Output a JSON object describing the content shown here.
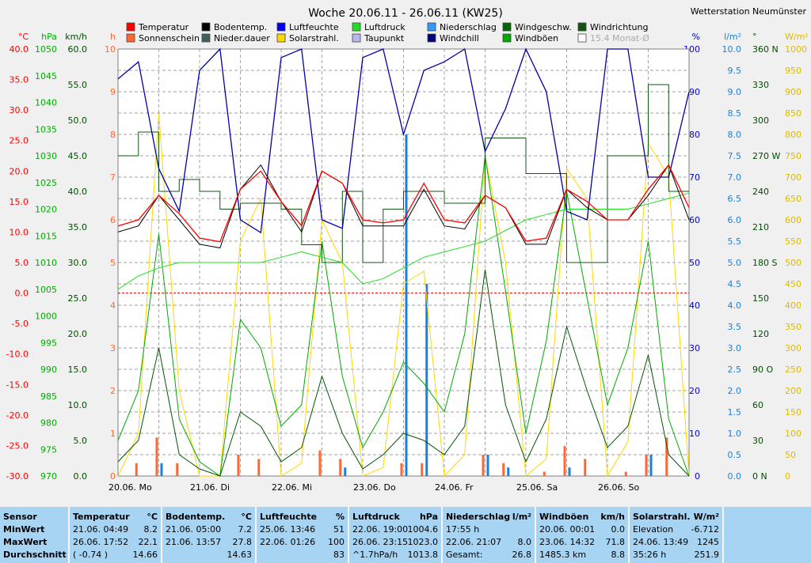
{
  "title": "Woche 20.06.11 - 26.06.11 (KW25)",
  "station": "Wetterstation Neumünster",
  "colors": {
    "temperature": "#ff0000",
    "soil": "#000000",
    "humidity": "#00008b",
    "pressure": "#00cc00",
    "rainfall": "#1e7fd6",
    "wind_speed": "#004d00",
    "wind_dir": "#106010",
    "gusts": "#009900",
    "sunshine": "#ff6633",
    "solar": "#ffd700",
    "dew": "#b0b0ff",
    "windchill": "#000080",
    "grid": "#606060"
  },
  "legend": [
    {
      "label": "Temperatur",
      "color": "#ff0000"
    },
    {
      "label": "Sonnenschein",
      "color": "#ff6633"
    },
    {
      "label": "Bodentemp.",
      "color": "#000000"
    },
    {
      "label": "Nieder.dauer",
      "color": "#406060"
    },
    {
      "label": "Luftfeuchte",
      "color": "#0000ff"
    },
    {
      "label": "Solarstrahl.",
      "color": "#ffd700"
    },
    {
      "label": "Luftdruck",
      "color": "#22dd22"
    },
    {
      "label": "Taupunkt",
      "color": "#b8b8ee"
    },
    {
      "label": "Niederschlag",
      "color": "#3399ff"
    },
    {
      "label": "Windchill",
      "color": "#000080"
    },
    {
      "label": "Windgeschw.",
      "color": "#006600"
    },
    {
      "label": "Windböen",
      "color": "#00aa00"
    },
    {
      "label": "Windrichtung",
      "color": "#115511"
    },
    {
      "label": "15.4 Monat-Ø",
      "color": "#ffffff"
    }
  ],
  "axes": {
    "temp": {
      "unit": "°C",
      "color": "#ff0000",
      "ticks": [
        "40.0",
        "35.0",
        "30.0",
        "25.0",
        "20.0",
        "15.0",
        "10.0",
        "5.0",
        "0.0",
        "-5.0",
        "-10.0",
        "-15.0",
        "-20.0",
        "-25.0",
        "-30.0"
      ]
    },
    "pressure": {
      "unit": "hPa",
      "color": "#00aa00",
      "ticks": [
        "1050",
        "1045",
        "1040",
        "1035",
        "1030",
        "1025",
        "1020",
        "1015",
        "1010",
        "1005",
        "1000",
        "995",
        "990",
        "985",
        "980",
        "975",
        "970"
      ]
    },
    "wind": {
      "unit": "km/h",
      "color": "#004d00",
      "ticks": [
        "60.0",
        "55.0",
        "50.0",
        "45.0",
        "40.0",
        "35.0",
        "30.0",
        "25.0",
        "20.0",
        "15.0",
        "10.0",
        "5.0",
        "0.0"
      ]
    },
    "hours": {
      "unit": "h",
      "color": "#ff6633",
      "ticks": [
        "10",
        "9",
        "8",
        "7",
        "6",
        "5",
        "4",
        "3",
        "2",
        "1",
        "0"
      ]
    },
    "humidity": {
      "unit": "%",
      "color": "#0000cc",
      "ticks": [
        "100",
        "90",
        "80",
        "70",
        "60",
        "50",
        "40",
        "30",
        "20",
        "10",
        "0"
      ]
    },
    "rain": {
      "unit": "l/m²",
      "color": "#1e7fd6",
      "ticks": [
        "10.0",
        "9.5",
        "9.0",
        "8.5",
        "8.0",
        "7.5",
        "7.0",
        "6.5",
        "6.0",
        "5.5",
        "5.0",
        "4.5",
        "4.0",
        "3.5",
        "3.0",
        "2.5",
        "2.0",
        "1.5",
        "1.0",
        "0.5",
        "0.0"
      ]
    },
    "direction": {
      "unit": "°",
      "color": "#004d00",
      "ticks": [
        "360 N",
        "330",
        "300",
        "270 W",
        "240",
        "210",
        "180 S",
        "150",
        "120",
        "90 O",
        "60",
        "30",
        "0    N"
      ]
    },
    "solar": {
      "unit": "W/m²",
      "color": "#ddbb00",
      "ticks": [
        "1000",
        "950",
        "900",
        "850",
        "800",
        "750",
        "700",
        "650",
        "600",
        "550",
        "500",
        "450",
        "400",
        "350",
        "300",
        "250",
        "200",
        "150",
        "100",
        "50",
        "0"
      ]
    }
  },
  "days": [
    "20.06.  Mo",
    "21.06.  Di",
    "22.06.  Mi",
    "23.06.  Do",
    "24.06.  Fr",
    "25.06.  Sa",
    "26.06.  So"
  ],
  "chart_data": {
    "type": "line",
    "title": "Woche 20.06.11 - 26.06.11 (KW25)",
    "x": [
      "20.06. 00:00",
      "20.06. 06:00",
      "20.06. 12:00",
      "20.06. 18:00",
      "21.06. 00:00",
      "21.06. 06:00",
      "21.06. 12:00",
      "21.06. 18:00",
      "22.06. 00:00",
      "22.06. 06:00",
      "22.06. 12:00",
      "22.06. 18:00",
      "23.06. 00:00",
      "23.06. 06:00",
      "23.06. 12:00",
      "23.06. 18:00",
      "24.06. 00:00",
      "24.06. 06:00",
      "24.06. 12:00",
      "24.06. 18:00",
      "25.06. 00:00",
      "25.06. 06:00",
      "25.06. 12:00",
      "25.06. 18:00",
      "26.06. 00:00",
      "26.06. 06:00",
      "26.06. 12:00",
      "26.06. 18:00",
      "26.06. 24:00"
    ],
    "series": [
      {
        "name": "Temperatur",
        "unit": "°C",
        "values": [
          11,
          12,
          16,
          13,
          9,
          8.4,
          17,
          20,
          15,
          11,
          20,
          18,
          12,
          11.5,
          12,
          18,
          12,
          11.5,
          16,
          14,
          8.5,
          9,
          17,
          15,
          12,
          12,
          17,
          21,
          14
        ]
      },
      {
        "name": "Bodentemp.",
        "unit": "°C",
        "values": [
          10,
          11,
          16,
          12,
          8,
          7.4,
          17,
          21,
          15,
          10,
          20,
          18,
          11,
          11,
          11,
          17,
          11,
          10.5,
          16,
          14,
          8,
          8,
          17,
          14,
          12,
          12,
          16,
          21,
          12
        ]
      },
      {
        "name": "Luftfeuchte",
        "unit": "%",
        "values": [
          93,
          97,
          72,
          62,
          95,
          100,
          60,
          57,
          98,
          100,
          60,
          58,
          98,
          100,
          80,
          95,
          97,
          100,
          76,
          86,
          100,
          90,
          62,
          60,
          100,
          100,
          70,
          70,
          90
        ]
      },
      {
        "name": "Luftdruck",
        "unit": "hPa",
        "values": [
          1005,
          1007.5,
          1009,
          1010,
          1010,
          1010,
          1010,
          1010,
          1011,
          1012,
          1011,
          1010,
          1006,
          1007,
          1009,
          1011,
          1012,
          1013,
          1014,
          1016,
          1018,
          1019,
          1020,
          1020,
          1020,
          1020,
          1021,
          1022,
          1023
        ]
      },
      {
        "name": "Windgeschw.",
        "unit": "km/h",
        "values": [
          2,
          5,
          18,
          3,
          1,
          0,
          9,
          7,
          2,
          4,
          14,
          6,
          1,
          3,
          6,
          5,
          3,
          7,
          29,
          10,
          2,
          8,
          21,
          12,
          4,
          7,
          17,
          3,
          0
        ]
      },
      {
        "name": "Windböen",
        "unit": "km/h",
        "values": [
          5,
          12,
          34,
          8,
          2,
          0,
          22,
          18,
          7,
          10,
          33,
          14,
          4,
          9,
          16,
          13,
          9,
          20,
          45,
          26,
          6,
          19,
          40,
          25,
          10,
          18,
          33,
          8,
          0
        ]
      },
      {
        "name": "Windrichtung",
        "unit": "°",
        "values": [
          270,
          290,
          240,
          250,
          240,
          225,
          230,
          230,
          225,
          195,
          180,
          240,
          180,
          225,
          240,
          240,
          230,
          230,
          285,
          285,
          255,
          255,
          180,
          180,
          270,
          270,
          330,
          240,
          240
        ]
      },
      {
        "name": "Solarstrahl.",
        "unit": "W/m²",
        "values": [
          0,
          100,
          850,
          200,
          0,
          0,
          550,
          650,
          0,
          30,
          600,
          500,
          0,
          20,
          450,
          480,
          0,
          50,
          750,
          500,
          0,
          40,
          720,
          650,
          0,
          80,
          780,
          700,
          0
        ]
      },
      {
        "name": "Niederschlag",
        "unit": "l/m²",
        "values": [
          0,
          0,
          0.3,
          0,
          0,
          0,
          0,
          0,
          0,
          0,
          0,
          0.2,
          0,
          0,
          8.0,
          4.5,
          0,
          0,
          0.5,
          0.2,
          0,
          0,
          0.2,
          0,
          0,
          0,
          0.5,
          0,
          0
        ]
      },
      {
        "name": "Sonnenschein",
        "unit": "h",
        "values": [
          0,
          0.3,
          0.9,
          0.3,
          0,
          0,
          0.5,
          0.4,
          0,
          0,
          0.6,
          0.4,
          0,
          0,
          0.3,
          0.3,
          0,
          0,
          0.5,
          0.3,
          0,
          0.1,
          0.7,
          0.4,
          0,
          0.1,
          0.5,
          0.9,
          0
        ]
      }
    ],
    "ylim_temp": [
      -30,
      40
    ],
    "ylim_pressure": [
      970,
      1050
    ],
    "ylim_wind": [
      0,
      60
    ],
    "ylim_humidity": [
      0,
      100
    ],
    "ylim_rain": [
      0,
      10
    ],
    "ylim_solar": [
      0,
      1000
    ],
    "ylim_dir": [
      0,
      360
    ],
    "ylim_hours": [
      0,
      10
    ],
    "grid": true
  },
  "stats": {
    "headers": {
      "sensor": "Sensor",
      "minwert": "MinWert",
      "maxwert": "MaxWert",
      "durchschnitt": "Durchschnitt"
    },
    "columns": [
      {
        "title": "Temperatur",
        "unit": "°C",
        "min_time": "21.06.  04:49",
        "min": "8.2",
        "max_time": "26.06.  17:52",
        "max": "22.1",
        "avg_time": "( -0.74 )",
        "avg": "14.66"
      },
      {
        "title": "Bodentemp.",
        "unit": "°C",
        "min_time": "21.06.  05:00",
        "min": "7.2",
        "max_time": "21.06.  13:57",
        "max": "27.8",
        "avg_time": "",
        "avg": "14.63"
      },
      {
        "title": "Luftfeuchte",
        "unit": "%",
        "min_time": "25.06.  13:46",
        "min": "51",
        "max_time": "22.06.  01:26",
        "max": "100",
        "avg_time": "",
        "avg": "83"
      },
      {
        "title": "Luftdruck",
        "unit": "hPa",
        "min_time": "22.06.  19:00",
        "min": "1004.6",
        "max_time": "26.06.  23:15",
        "max": "1023.0",
        "avg_time": "^1.7hPa/h",
        "avg": "1013.8"
      },
      {
        "title": "Niederschlag",
        "unit": "l/m²",
        "min_time": "17:55 h",
        "min": "",
        "max_time": "22.06.  21:07",
        "max": "8.0",
        "avg_time": "Gesamt:",
        "avg": "26.8"
      },
      {
        "title": "Windböen",
        "unit": "km/h",
        "min_time": "20.06.  00:01",
        "min": "0.0",
        "max_time": "23.06.  14:32",
        "max": "71.8",
        "avg_time": "1485.3 km",
        "avg": "8.8"
      },
      {
        "title": "Solarstrahl.",
        "unit": "W/m²",
        "min_time": "Elevation",
        "min": "-6.712",
        "max_time": "24.06.  13:49",
        "max": "1245",
        "avg_time": "35:26 h",
        "avg": "251.9"
      }
    ]
  }
}
